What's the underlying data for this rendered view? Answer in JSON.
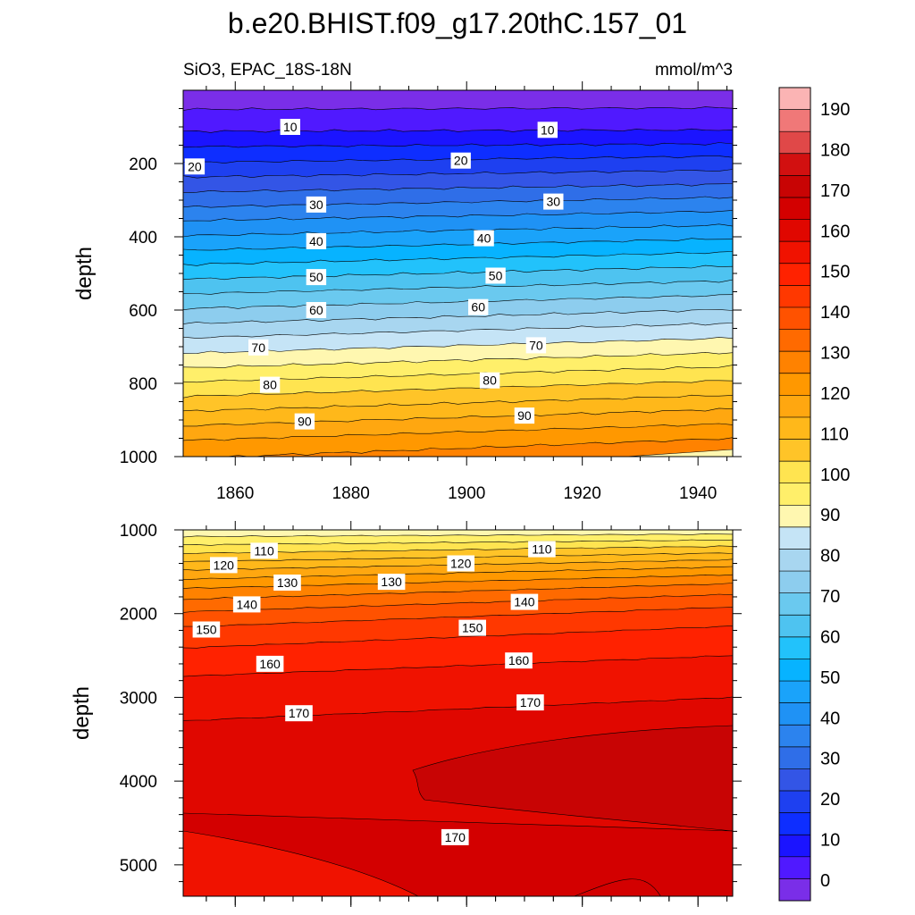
{
  "chart_data": [
    {
      "type": "contour",
      "title": "b.e20.BHIST.f09_g17.20thC.157_01",
      "left_subtitle": "SiO3, EPAC_18S-18N",
      "right_subtitle": "mmol/m^3",
      "ylabel": "depth",
      "xlim": [
        1851,
        1946
      ],
      "ylim": [
        1000,
        0
      ],
      "xticks": [
        1860,
        1880,
        1900,
        1920,
        1940
      ],
      "xtick_labels": [
        "1860",
        "1880",
        "1900",
        "1920",
        "1940"
      ],
      "yticks": [
        200,
        400,
        600,
        800,
        1000
      ],
      "ytick_labels": [
        "200",
        "400",
        "600",
        "800",
        "1000"
      ],
      "level_depths_left": [
        52,
        112,
        154,
        197,
        237,
        278,
        319,
        356,
        397,
        437,
        476,
        516,
        556,
        596,
        637,
        676,
        718,
        758,
        796,
        836,
        876,
        916,
        956,
        1005
      ],
      "level_depths_right": [
        48,
        108,
        146,
        180,
        218,
        256,
        292,
        330,
        368,
        405,
        442,
        480,
        520,
        559,
        598,
        636,
        676,
        716,
        754,
        792,
        832,
        870,
        910,
        950
      ],
      "contour_labels": [
        {
          "text": "10",
          "x": 1869.5,
          "y": 100
        },
        {
          "text": "10",
          "x": 1914,
          "y": 108
        },
        {
          "text": "20",
          "x": 1853,
          "y": 208
        },
        {
          "text": "20",
          "x": 1899,
          "y": 192
        },
        {
          "text": "30",
          "x": 1874,
          "y": 312
        },
        {
          "text": "30",
          "x": 1915,
          "y": 304
        },
        {
          "text": "40",
          "x": 1874,
          "y": 412
        },
        {
          "text": "40",
          "x": 1903,
          "y": 404
        },
        {
          "text": "50",
          "x": 1874,
          "y": 510
        },
        {
          "text": "50",
          "x": 1905,
          "y": 506
        },
        {
          "text": "60",
          "x": 1874,
          "y": 600
        },
        {
          "text": "60",
          "x": 1902,
          "y": 592
        },
        {
          "text": "70",
          "x": 1864,
          "y": 702
        },
        {
          "text": "70",
          "x": 1912,
          "y": 696
        },
        {
          "text": "80",
          "x": 1866,
          "y": 804
        },
        {
          "text": "80",
          "x": 1904,
          "y": 792
        },
        {
          "text": "90",
          "x": 1872,
          "y": 904
        },
        {
          "text": "90",
          "x": 1910,
          "y": 888
        }
      ]
    },
    {
      "type": "contour",
      "ylabel": "depth",
      "xlim": [
        1851,
        1946
      ],
      "ylim": [
        5375,
        1000
      ],
      "yticks": [
        1000,
        2000,
        3000,
        4000,
        5000
      ],
      "ytick_labels": [
        "1000",
        "2000",
        "3000",
        "4000",
        "5000"
      ],
      "level_depths_left": [
        1080,
        1180,
        1280,
        1380,
        1480,
        1590,
        1700,
        1830,
        1980,
        2160,
        2410,
        2750,
        3280
      ],
      "level_depths_right": [
        1050,
        1120,
        1195,
        1275,
        1355,
        1440,
        1535,
        1640,
        1770,
        1920,
        2150,
        2500,
        3000
      ],
      "contour_labels": [
        {
          "text": "110",
          "x": 1865,
          "y": 1250
        },
        {
          "text": "110",
          "x": 1913,
          "y": 1230
        },
        {
          "text": "120",
          "x": 1858,
          "y": 1420
        },
        {
          "text": "120",
          "x": 1899,
          "y": 1400
        },
        {
          "text": "130",
          "x": 1869,
          "y": 1630
        },
        {
          "text": "130",
          "x": 1887,
          "y": 1620
        },
        {
          "text": "140",
          "x": 1862,
          "y": 1890
        },
        {
          "text": "140",
          "x": 1910,
          "y": 1860
        },
        {
          "text": "150",
          "x": 1855,
          "y": 2190
        },
        {
          "text": "150",
          "x": 1901,
          "y": 2170
        },
        {
          "text": "160",
          "x": 1866,
          "y": 2600
        },
        {
          "text": "160",
          "x": 1909,
          "y": 2560
        },
        {
          "text": "170",
          "x": 1871,
          "y": 3190
        },
        {
          "text": "170",
          "x": 1911,
          "y": 3060
        },
        {
          "text": "170",
          "x": 1898,
          "y": 4670
        }
      ]
    },
    {
      "type": "colorbar",
      "tick_labels": [
        "0",
        "10",
        "20",
        "30",
        "40",
        "50",
        "60",
        "70",
        "80",
        "90",
        "100",
        "110",
        "120",
        "130",
        "140",
        "150",
        "160",
        "170",
        "180",
        "190"
      ],
      "colors": [
        "#7a2ee8",
        "#5019ff",
        "#1b14ff",
        "#0e2eff",
        "#1e40f0",
        "#3355e6",
        "#2f6ee8",
        "#2c83ee",
        "#1f92f5",
        "#1aa3fa",
        "#07b3ff",
        "#22c2fb",
        "#4ec3f0",
        "#6ac9ef",
        "#8dcdee",
        "#a8d6f0",
        "#c5e4f6",
        "#fff7b0",
        "#ffef6a",
        "#ffe450",
        "#ffc428",
        "#ffb81a",
        "#ffa710",
        "#ff9800",
        "#ff8200",
        "#ff6a00",
        "#ff5200",
        "#ff3800",
        "#ff2200",
        "#f01200",
        "#e00700",
        "#d30000",
        "#c80404",
        "#d21010",
        "#e04848",
        "#f07878",
        "#fbb4b4"
      ]
    }
  ]
}
